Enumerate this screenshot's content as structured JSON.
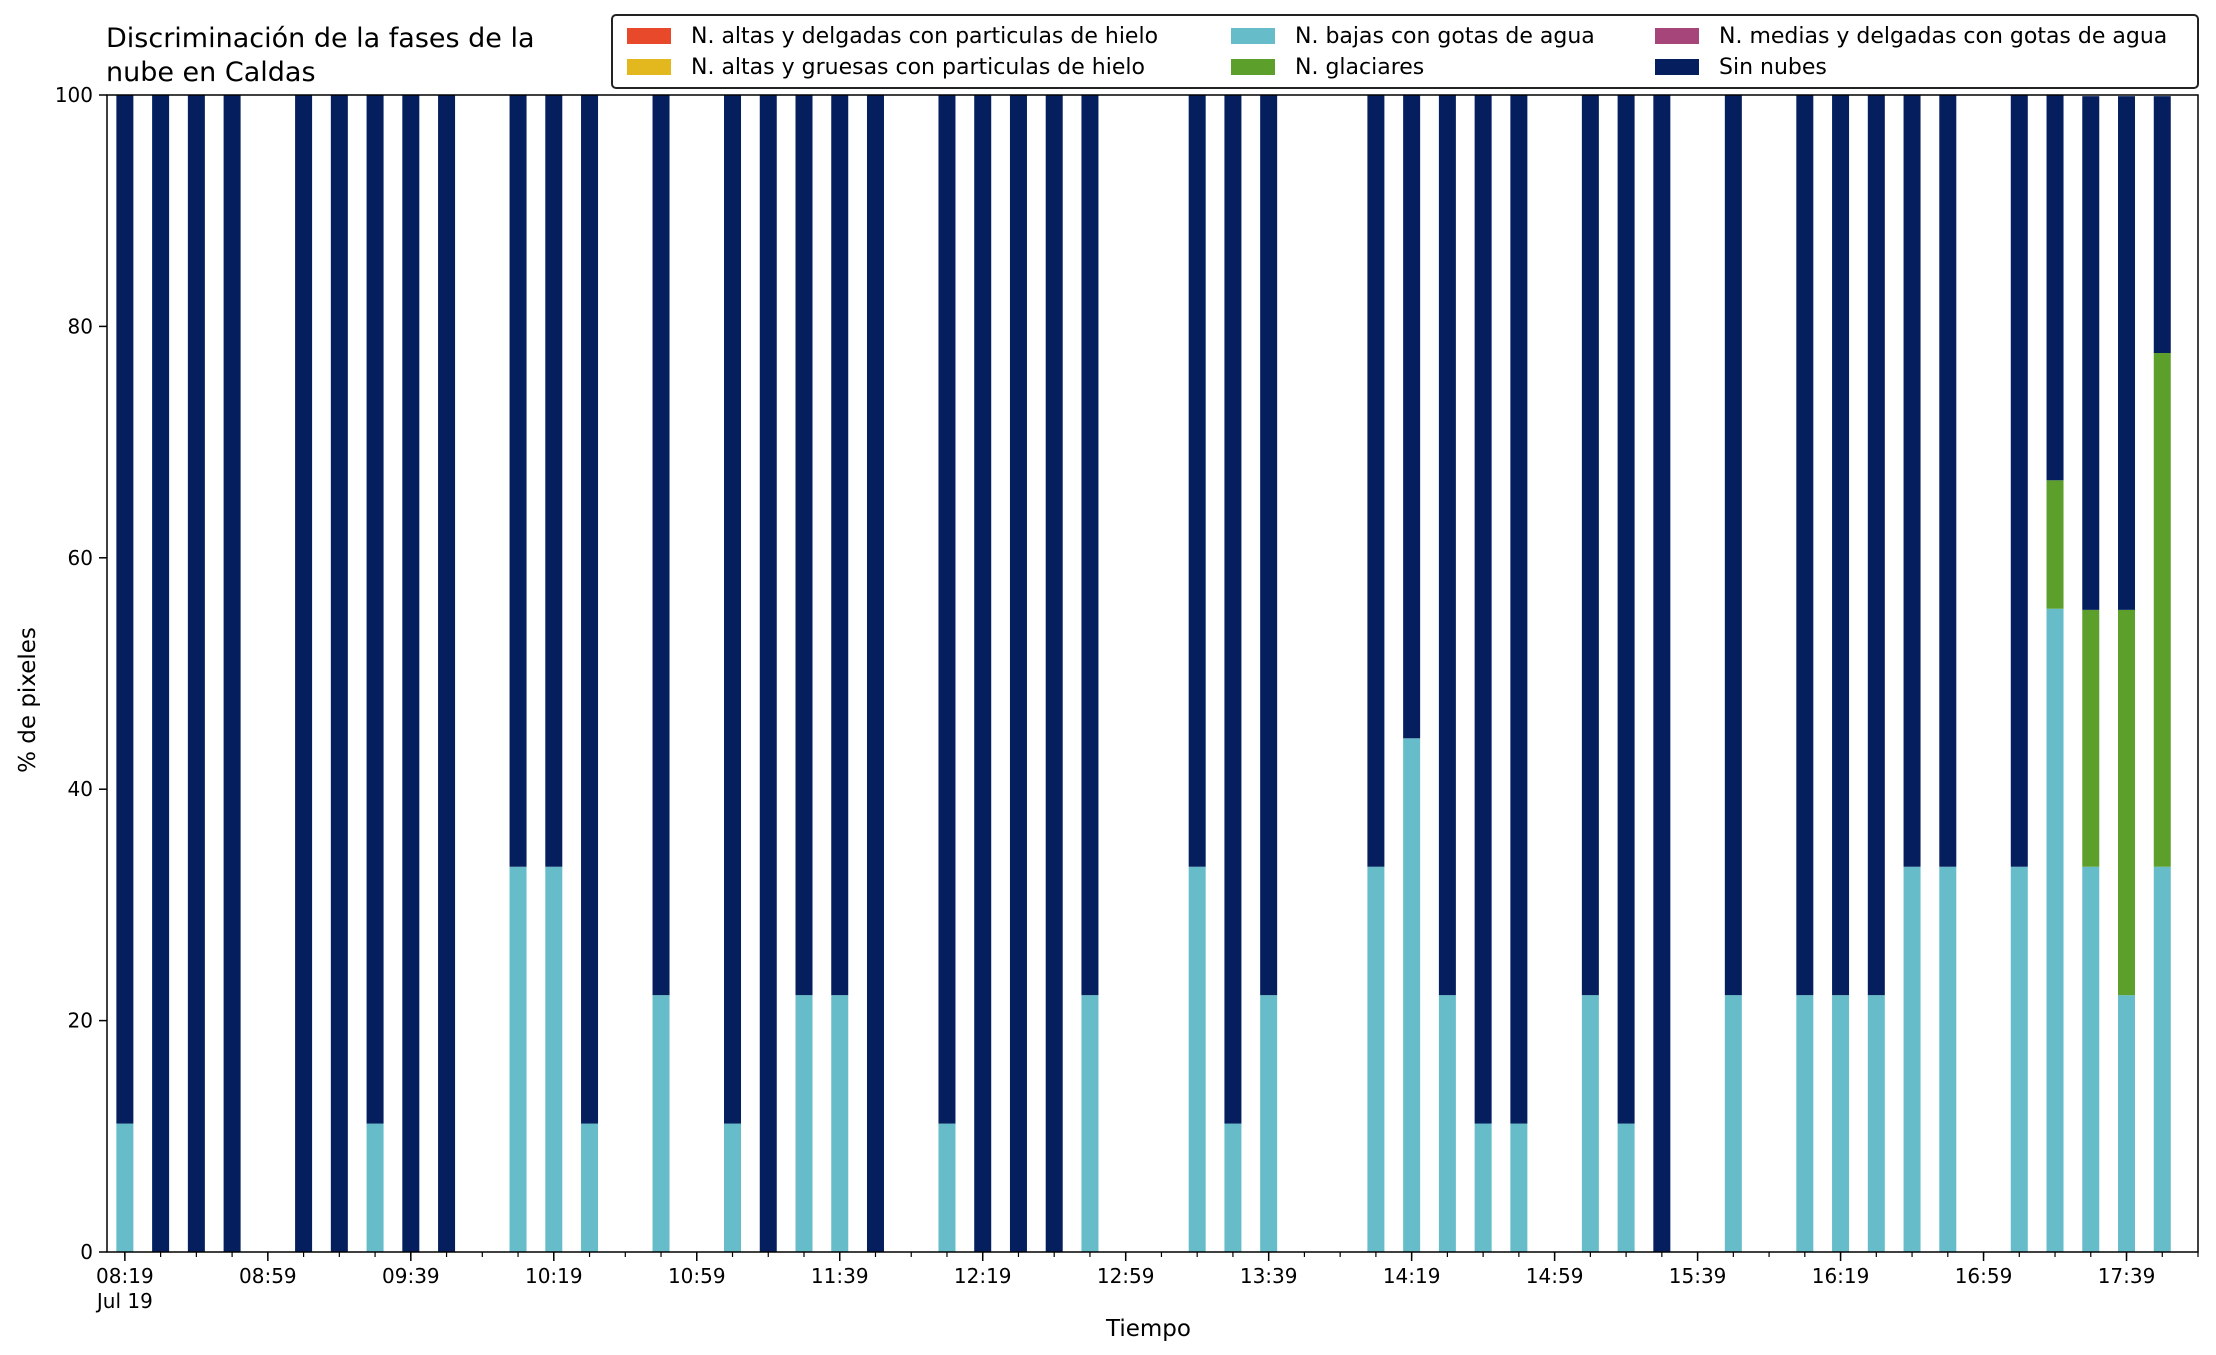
{
  "chart_data": {
    "type": "bar",
    "stacked": true,
    "title": "Discriminación de la fases de la\nnube en Caldas",
    "xlabel": "Tiempo",
    "ylabel": "% de pixeles",
    "ylim": [
      0,
      100
    ],
    "yticks": [
      0,
      20,
      40,
      60,
      80,
      100
    ],
    "xlim": [
      "08:14",
      "17:59"
    ],
    "xticks": [
      {
        "time": "08:19",
        "label": "08:19",
        "sublabel": "Jul 19"
      },
      {
        "time": "08:59",
        "label": "08:59"
      },
      {
        "time": "09:39",
        "label": "09:39"
      },
      {
        "time": "10:19",
        "label": "10:19"
      },
      {
        "time": "10:59",
        "label": "10:59"
      },
      {
        "time": "11:39",
        "label": "11:39"
      },
      {
        "time": "12:19",
        "label": "12:19"
      },
      {
        "time": "12:59",
        "label": "12:59"
      },
      {
        "time": "13:39",
        "label": "13:39"
      },
      {
        "time": "14:19",
        "label": "14:19"
      },
      {
        "time": "14:59",
        "label": "14:59"
      },
      {
        "time": "15:39",
        "label": "15:39"
      },
      {
        "time": "16:19",
        "label": "16:19"
      },
      {
        "time": "16:59",
        "label": "16:59"
      },
      {
        "time": "17:39",
        "label": "17:39"
      }
    ],
    "minor_tick_minutes": 10,
    "legend_position": "top-right",
    "series": [
      {
        "name": "N. altas y delgadas con particulas de hielo",
        "color": "#e8492a"
      },
      {
        "name": "N. altas y gruesas con particulas de hielo",
        "color": "#e3b81e"
      },
      {
        "name": "N. bajas con gotas de agua",
        "color": "#66bcc9"
      },
      {
        "name": "N. glaciares",
        "color": "#5d9f2b"
      },
      {
        "name": "N. medias y delgadas con gotas de agua",
        "color": "#a5457a"
      },
      {
        "name": "Sin nubes",
        "color": "#041e5e"
      }
    ],
    "bars": [
      {
        "time": "08:19",
        "bajas": 11.1,
        "glaciares": 0,
        "sin_nubes": 88.9
      },
      {
        "time": "08:29",
        "bajas": 0,
        "glaciares": 0,
        "sin_nubes": 100
      },
      {
        "time": "08:39",
        "bajas": 0,
        "glaciares": 0,
        "sin_nubes": 100
      },
      {
        "time": "08:49",
        "bajas": 0,
        "glaciares": 0,
        "sin_nubes": 100
      },
      {
        "time": "09:09",
        "bajas": 0,
        "glaciares": 0,
        "sin_nubes": 100
      },
      {
        "time": "09:19",
        "bajas": 0,
        "glaciares": 0,
        "sin_nubes": 100
      },
      {
        "time": "09:29",
        "bajas": 11.1,
        "glaciares": 0,
        "sin_nubes": 88.9
      },
      {
        "time": "09:39",
        "bajas": 0,
        "glaciares": 0,
        "sin_nubes": 100
      },
      {
        "time": "09:49",
        "bajas": 0,
        "glaciares": 0,
        "sin_nubes": 100
      },
      {
        "time": "10:09",
        "bajas": 33.3,
        "glaciares": 0,
        "sin_nubes": 66.7
      },
      {
        "time": "10:19",
        "bajas": 33.3,
        "glaciares": 0,
        "sin_nubes": 66.7
      },
      {
        "time": "10:29",
        "bajas": 11.1,
        "glaciares": 0,
        "sin_nubes": 88.9
      },
      {
        "time": "10:49",
        "bajas": 22.2,
        "glaciares": 0,
        "sin_nubes": 77.8
      },
      {
        "time": "11:09",
        "bajas": 11.1,
        "glaciares": 0,
        "sin_nubes": 88.9
      },
      {
        "time": "11:19",
        "bajas": 0,
        "glaciares": 0,
        "sin_nubes": 100
      },
      {
        "time": "11:29",
        "bajas": 22.2,
        "glaciares": 0,
        "sin_nubes": 77.8
      },
      {
        "time": "11:39",
        "bajas": 22.2,
        "glaciares": 0,
        "sin_nubes": 77.8
      },
      {
        "time": "11:49",
        "bajas": 0,
        "glaciares": 0,
        "sin_nubes": 100
      },
      {
        "time": "12:09",
        "bajas": 11.1,
        "glaciares": 0,
        "sin_nubes": 88.9
      },
      {
        "time": "12:19",
        "bajas": 0,
        "glaciares": 0,
        "sin_nubes": 100
      },
      {
        "time": "12:29",
        "bajas": 0,
        "glaciares": 0,
        "sin_nubes": 100
      },
      {
        "time": "12:39",
        "bajas": 0,
        "glaciares": 0,
        "sin_nubes": 100
      },
      {
        "time": "12:49",
        "bajas": 22.2,
        "glaciares": 0,
        "sin_nubes": 77.8
      },
      {
        "time": "13:19",
        "bajas": 33.3,
        "glaciares": 0,
        "sin_nubes": 66.7
      },
      {
        "time": "13:29",
        "bajas": 11.1,
        "glaciares": 0,
        "sin_nubes": 88.9
      },
      {
        "time": "13:39",
        "bajas": 22.2,
        "glaciares": 0,
        "sin_nubes": 77.8
      },
      {
        "time": "14:09",
        "bajas": 33.3,
        "glaciares": 0,
        "sin_nubes": 66.7
      },
      {
        "time": "14:19",
        "bajas": 44.4,
        "glaciares": 0,
        "sin_nubes": 55.6
      },
      {
        "time": "14:29",
        "bajas": 22.2,
        "glaciares": 0,
        "sin_nubes": 77.8
      },
      {
        "time": "14:39",
        "bajas": 11.1,
        "glaciares": 0,
        "sin_nubes": 88.9
      },
      {
        "time": "14:49",
        "bajas": 11.1,
        "glaciares": 0,
        "sin_nubes": 88.9
      },
      {
        "time": "15:09",
        "bajas": 22.2,
        "glaciares": 0,
        "sin_nubes": 77.8
      },
      {
        "time": "15:19",
        "bajas": 11.1,
        "glaciares": 0,
        "sin_nubes": 88.9
      },
      {
        "time": "15:29",
        "bajas": 0,
        "glaciares": 0,
        "sin_nubes": 100
      },
      {
        "time": "15:49",
        "bajas": 22.2,
        "glaciares": 0,
        "sin_nubes": 77.8
      },
      {
        "time": "16:09",
        "bajas": 22.2,
        "glaciares": 0,
        "sin_nubes": 77.8
      },
      {
        "time": "16:19",
        "bajas": 22.2,
        "glaciares": 0,
        "sin_nubes": 77.8
      },
      {
        "time": "16:29",
        "bajas": 22.2,
        "glaciares": 0,
        "sin_nubes": 77.8
      },
      {
        "time": "16:39",
        "bajas": 33.3,
        "glaciares": 0,
        "sin_nubes": 66.7
      },
      {
        "time": "16:49",
        "bajas": 33.3,
        "glaciares": 0,
        "sin_nubes": 66.7
      },
      {
        "time": "17:09",
        "bajas": 33.3,
        "glaciares": 0,
        "sin_nubes": 66.7
      },
      {
        "time": "17:19",
        "bajas": 55.6,
        "glaciares": 11.1,
        "sin_nubes": 33.3
      },
      {
        "time": "17:29",
        "bajas": 33.3,
        "glaciares": 22.2,
        "sin_nubes": 44.4
      },
      {
        "time": "17:39",
        "bajas": 22.2,
        "glaciares": 33.3,
        "sin_nubes": 44.4
      },
      {
        "time": "17:49",
        "bajas": 33.3,
        "glaciares": 44.4,
        "sin_nubes": 22.2
      }
    ]
  }
}
